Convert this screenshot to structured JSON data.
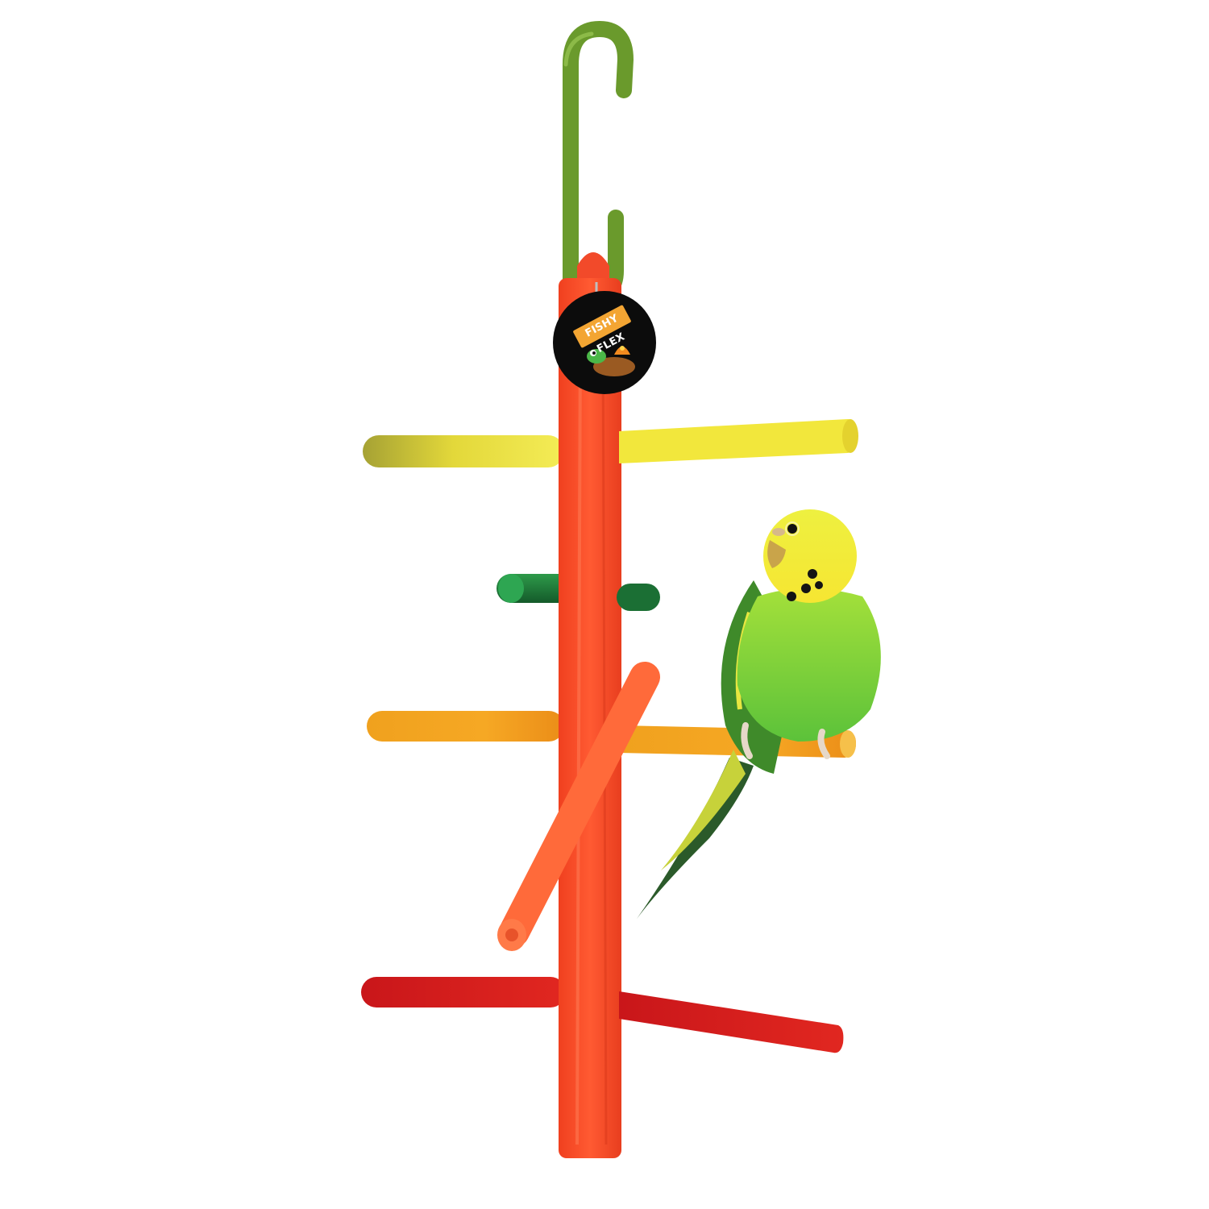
{
  "product": {
    "tag": {
      "brand": "FISHY FLEX",
      "label_bg": "#f3a533",
      "disc_color": "#0c0c0c"
    },
    "colors": {
      "background": "#ffffff",
      "hook": "#6a9a2c",
      "post": "#f5482a",
      "perch_top": "#f2e23a",
      "perch_green": "#1f7a3a",
      "perch_orange": "#f0a11e",
      "perch_diagonal": "#ff6a3a",
      "perch_bottom": "#d81e1e",
      "bird_body": "#7cd33c",
      "bird_head": "#f3ec3a"
    },
    "icons": [
      "hook-icon",
      "turtle-mascot-icon",
      "parakeet-icon"
    ]
  }
}
